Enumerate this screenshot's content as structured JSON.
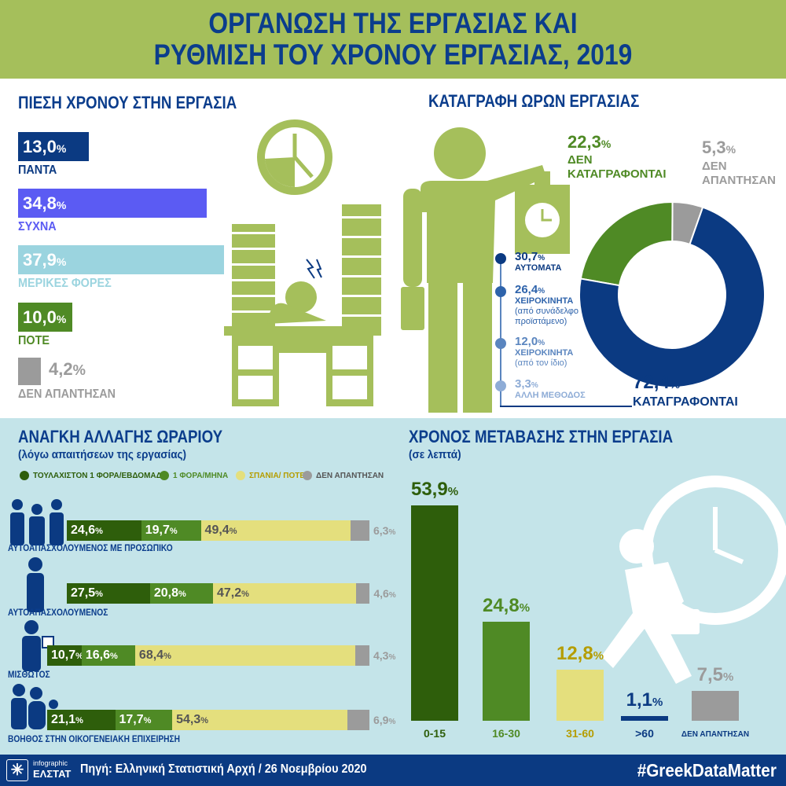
{
  "title": {
    "line1": "ΟΡΓΑΝΩΣΗ ΤΗΣ ΕΡΓΑΣΙΑΣ ΚΑΙ",
    "line2": "ΡΥΘΜΙΣΗ ΤΟΥ ΧΡΟΝΟΥ ΕΡΓΑΣΙΑΣ, 2019"
  },
  "colors": {
    "navy": "#0b3a82",
    "purple": "#5b5bf3",
    "lightblue": "#9bd4df",
    "green": "#4f8a25",
    "darkgreen": "#2e5e0b",
    "yellow": "#e4df7d",
    "gray": "#9b9b9b",
    "title_bg": "#a5bf5b",
    "bottom_bg": "#c4e4e9"
  },
  "chart_data": [
    {
      "type": "bar",
      "title": "ΠΙΕΣΗ ΧΡΟΝΟΥ ΣΤΗΝ ΕΡΓΑΣΙΑ",
      "categories": [
        "ΠΑΝΤΑ",
        "ΣΥΧΝΑ",
        "ΜΕΡΙΚΕΣ ΦΟΡΕΣ",
        "ΠΟΤΕ",
        "ΔΕΝ ΑΠΑΝΤΗΣΑΝ"
      ],
      "values": [
        13.0,
        34.8,
        37.9,
        10.0,
        4.2
      ],
      "labels": [
        "13,0",
        "34,8",
        "37,9",
        "10,0",
        "4,2"
      ],
      "colors": [
        "#0b3a82",
        "#5b5bf3",
        "#9bd4df",
        "#4f8a25",
        "#9b9b9b"
      ],
      "unit": "%"
    },
    {
      "type": "pie",
      "title": "ΚΑΤΑΓΡΑΦΗ  ΩΡΩΝ ΕΡΓΑΣΙΑΣ",
      "slices": [
        {
          "label": "ΔΕΝ ΚΑΤΑΓΡΑΦΟΝΤΑΙ",
          "value": 22.3,
          "text": "22,3",
          "color": "#4f8a25"
        },
        {
          "label": "ΔΕΝ ΑΠΑΝΤΗΣΑΝ",
          "value": 5.3,
          "text": "5,3",
          "color": "#9b9b9b"
        },
        {
          "label": "ΚΑΤΑΓΡΑΦΟΝΤΑΙ",
          "value": 72.4,
          "text": "72,4",
          "color": "#0b3a82"
        }
      ],
      "methods": [
        {
          "value": "30,7",
          "label": "ΑΥΤΟΜΑΤΑ",
          "note": "",
          "color": "#0b3a82"
        },
        {
          "value": "26,4",
          "label": "ΧΕΙΡΟΚΙΝΗΤΑ",
          "note": "(από συνάδελφο ή προϊστάμενο)",
          "color": "#2e63ab"
        },
        {
          "value": "12,0",
          "label": "ΧΕΙΡΟΚΙΝΗΤΑ",
          "note": "(από τον ίδιο)",
          "color": "#5a85bf"
        },
        {
          "value": "3,3",
          "label": "ΑΛΛΗ ΜΕΘΟΔΟΣ",
          "note": "",
          "color": "#8eacd6"
        }
      ],
      "unit": "%"
    },
    {
      "type": "bar",
      "stacked": true,
      "title": "ΑΝΑΓΚΗ ΑΛΛΑΓΗΣ ΩΡΑΡΙΟΥ",
      "subtitle": "(λόγω απαιτήσεων της εργασίας)",
      "legend": [
        "ΤΟΥΛΑΧΙΣΤΟΝ 1 ΦΟΡΑ/ΕΒΔΟΜΑΔΑ",
        "1 ΦΟΡΑ/ΜΗΝΑ",
        "ΣΠΑΝΙΑ/ ΠΟΤΕ",
        "ΔΕΝ ΑΠΑΝΤΗΣΑΝ"
      ],
      "legend_colors": [
        "#2e5e0b",
        "#4f8a25",
        "#e4df7d",
        "#9b9b9b"
      ],
      "categories": [
        "ΑΥΤΟΑΠΑΣΧΟΛΟΥΜΕΝΟΣ ΜΕ ΠΡΟΣΩΠΙΚΟ",
        "ΑΥΤΟΑΠΑΣΧΟΛΟΥΜΕΝΟΣ",
        "ΜΙΣΘΩΤΟΣ",
        "ΒΟΗΘΟΣ ΣΤΗΝ ΟΙΚΟΓΕΝΕΙΑΚΗ ΕΠΙΧΕΙΡΗΣΗ"
      ],
      "series": [
        {
          "name": "ΤΟΥΛΑΧΙΣΤΟΝ 1 ΦΟΡΑ/ΕΒΔΟΜΑΔΑ",
          "values": [
            24.6,
            27.5,
            10.7,
            21.1
          ],
          "labels": [
            "24,6",
            "27,5",
            "10,7",
            "21,1"
          ]
        },
        {
          "name": "1 ΦΟΡΑ/ΜΗΝΑ",
          "values": [
            19.7,
            20.8,
            16.6,
            17.7
          ],
          "labels": [
            "19,7",
            "20,8",
            "16,6",
            "17,7"
          ]
        },
        {
          "name": "ΣΠΑΝΙΑ/ ΠΟΤΕ",
          "values": [
            49.4,
            47.2,
            68.4,
            54.3
          ],
          "labels": [
            "49,4",
            "47,2",
            "68,4",
            "54,3"
          ]
        },
        {
          "name": "ΔΕΝ ΑΠΑΝΤΗΣΑΝ",
          "values": [
            6.3,
            4.6,
            4.3,
            6.9
          ],
          "labels": [
            "6,3",
            "4,6",
            "4,3",
            "6,9"
          ]
        }
      ],
      "unit": "%"
    },
    {
      "type": "bar",
      "title": "ΧΡΟΝΟΣ ΜΕΤΑΒΑΣΗΣ ΣΤΗΝ ΕΡΓΑΣΙΑ",
      "subtitle": "(σε λεπτά)",
      "categories": [
        "0-15",
        "16-30",
        "31-60",
        ">60",
        "ΔΕΝ ΑΠΑΝΤΗΣΑΝ"
      ],
      "values": [
        53.9,
        24.8,
        12.8,
        1.1,
        7.5
      ],
      "labels": [
        "53,9",
        "24,8",
        "12,8",
        "1,1",
        "7,5"
      ],
      "colors": [
        "#2e5e0b",
        "#4f8a25",
        "#e4df7d",
        "#0b3a82",
        "#9b9b9b"
      ],
      "label_colors": [
        "#2e5e0b",
        "#4f8a25",
        "#b59d00",
        "#0b3a82",
        "#9b9b9b"
      ],
      "unit": "%"
    }
  ],
  "footer": {
    "logo_small": "infographic",
    "logo_big": "ΕΛΣΤΑΤ",
    "source": "Πηγή: Ελληνική Στατιστική Αρχή  / 26 Νοεμβρίου 2020",
    "hashtag": "#GreekDataMatter"
  }
}
